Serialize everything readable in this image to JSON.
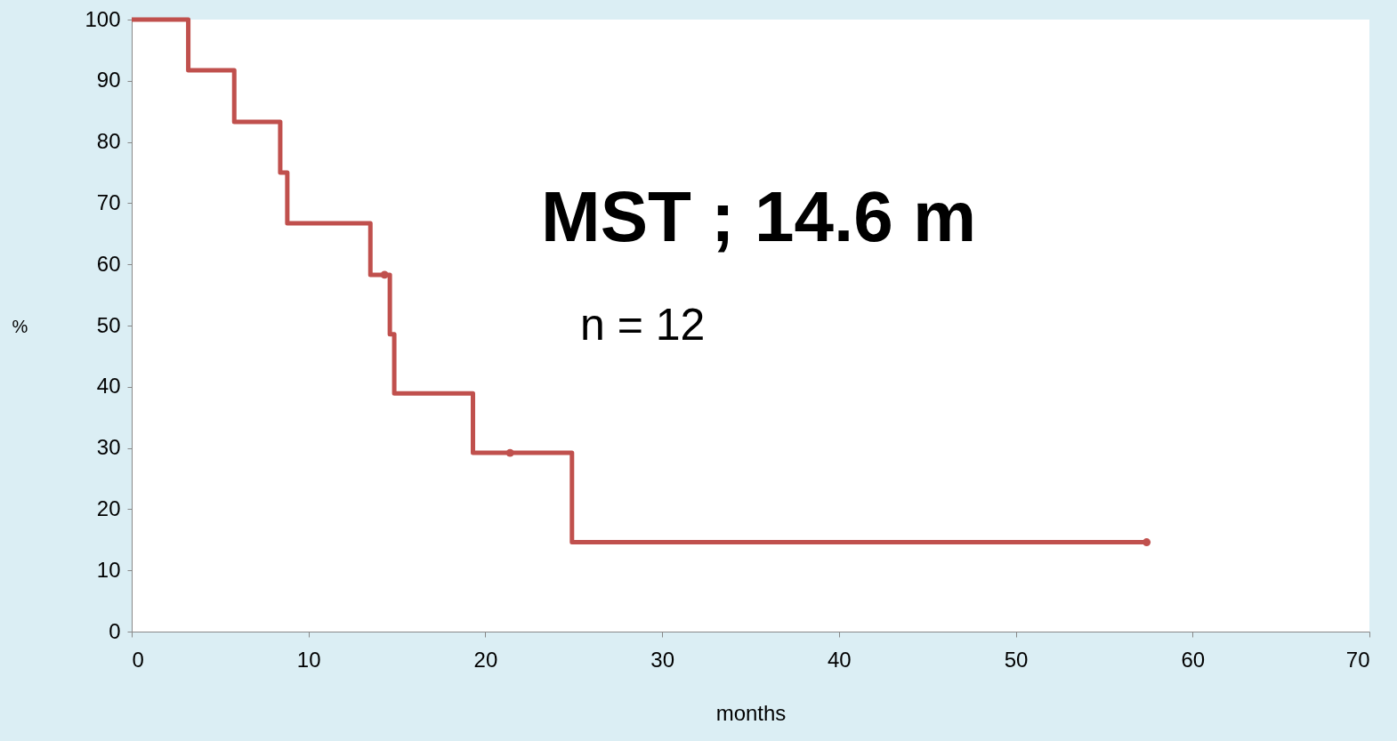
{
  "chart_data": {
    "type": "step",
    "xlabel": "months",
    "ylabel": "%",
    "xlim": [
      0,
      70
    ],
    "xticks": [
      0,
      10,
      20,
      30,
      40,
      50,
      60,
      70
    ],
    "ylim": [
      0,
      100
    ],
    "yticks": [
      0,
      10,
      20,
      30,
      40,
      50,
      60,
      70,
      80,
      90,
      100
    ],
    "grid": false,
    "annotations": [
      "MST ; 14.6 m",
      "n =  12"
    ],
    "series": [
      {
        "type": "step",
        "color": "#c0504d",
        "x": [
          0,
          3.2,
          5.8,
          8.4,
          8.8,
          13.5,
          14.6,
          14.85,
          19.3,
          24.9,
          57.4
        ],
        "values": [
          100,
          91.7,
          83.3,
          75,
          66.7,
          58.3,
          48.6,
          38.9,
          29.2,
          14.6,
          14.6
        ]
      },
      {
        "type": "scatter",
        "marker": "circle",
        "color": "#c0504d",
        "x": [
          14.3,
          21.4,
          57.4
        ],
        "values": [
          58.3,
          29.2,
          14.6
        ]
      }
    ]
  }
}
